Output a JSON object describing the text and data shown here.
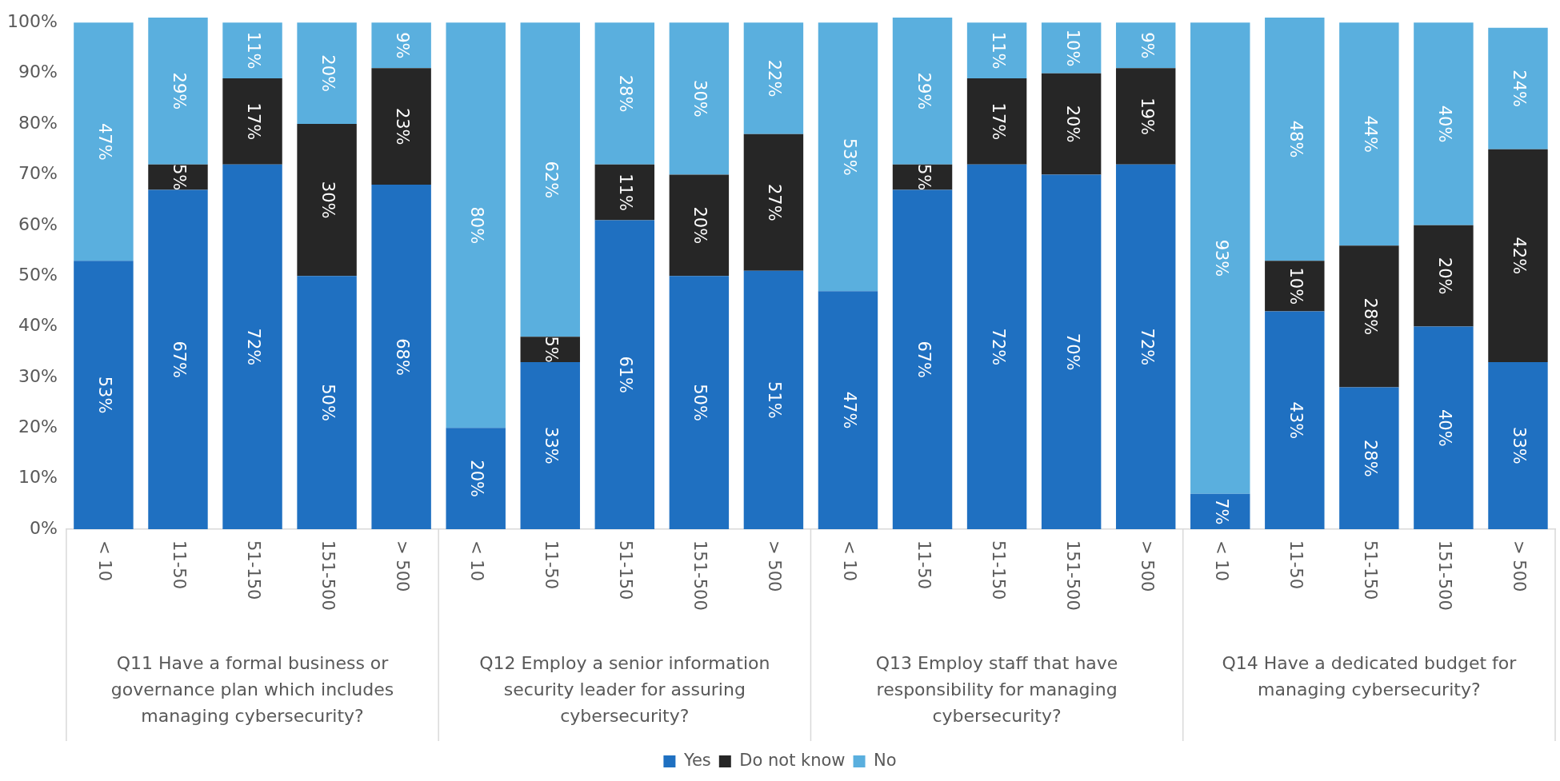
{
  "chart_data": {
    "type": "bar",
    "stacked": true,
    "categories": [
      "< 10",
      "11-50",
      "51-150",
      "151-500",
      "> 500",
      "< 10",
      "11-50",
      "51-150",
      "151-500",
      "> 500",
      "< 10",
      "11-50",
      "51-150",
      "151-500",
      "> 500",
      "< 10",
      "11-50",
      "51-150",
      "151-500",
      "> 500"
    ],
    "series": [
      {
        "name": "Yes",
        "color": "#1f70c1",
        "values": [
          53,
          67,
          72,
          50,
          68,
          20,
          33,
          61,
          50,
          51,
          47,
          67,
          72,
          70,
          72,
          7,
          43,
          28,
          40,
          33
        ],
        "value_labels": [
          "53%",
          "67%",
          "72%",
          "50%",
          "68%",
          "20%",
          "33%",
          "61%",
          "50%",
          "51%",
          "47%",
          "67%",
          "72%",
          "70%",
          "72%",
          "7%",
          "43%",
          "28%",
          "40%",
          "33%"
        ]
      },
      {
        "name": "Do not know",
        "color": "#262626",
        "values": [
          null,
          5,
          17,
          30,
          23,
          null,
          5,
          11,
          20,
          27,
          null,
          5,
          17,
          20,
          19,
          null,
          10,
          28,
          20,
          42
        ],
        "value_labels": [
          null,
          "5%",
          "17%",
          "30%",
          "23%",
          null,
          "5%",
          "11%",
          "20%",
          "27%",
          null,
          "5%",
          "17%",
          "20%",
          "19%",
          null,
          "10%",
          "28%",
          "20%",
          "42%"
        ]
      },
      {
        "name": "No",
        "color": "#5aafde",
        "values": [
          47,
          29,
          11,
          20,
          9,
          80,
          62,
          28,
          30,
          22,
          53,
          29,
          11,
          10,
          9,
          93,
          48,
          44,
          40,
          24
        ],
        "value_labels": [
          "47%",
          "29%",
          "11%",
          "20%",
          "9%",
          "80%",
          "62%",
          "28%",
          "30%",
          "22%",
          "53%",
          "29%",
          "11%",
          "10%",
          "9%",
          "93%",
          "48%",
          "44%",
          "40%",
          "24%"
        ]
      }
    ],
    "ylim": [
      0,
      101
    ],
    "yticks": [
      {
        "value": 0,
        "label": "0%"
      },
      {
        "value": 10,
        "label": "10%"
      },
      {
        "value": 20,
        "label": "20%"
      },
      {
        "value": 30,
        "label": "30%"
      },
      {
        "value": 40,
        "label": "40%"
      },
      {
        "value": 50,
        "label": "50%"
      },
      {
        "value": 60,
        "label": "60%"
      },
      {
        "value": 70,
        "label": "70%"
      },
      {
        "value": 80,
        "label": "80%"
      },
      {
        "value": 90,
        "label": "90%"
      },
      {
        "value": 100,
        "label": "100%"
      }
    ],
    "annotations": [
      "Q11 Have a formal business or governance plan which includes managing cybersecurity?",
      "Q12 Employ a senior information security leader for assuring cybersecurity?",
      "Q13 Employ staff that have responsibility for managing cybersecurity?",
      "Q14 Have a dedicated budget for managing cybersecurity?"
    ],
    "grid": false,
    "legend": "bottom"
  }
}
